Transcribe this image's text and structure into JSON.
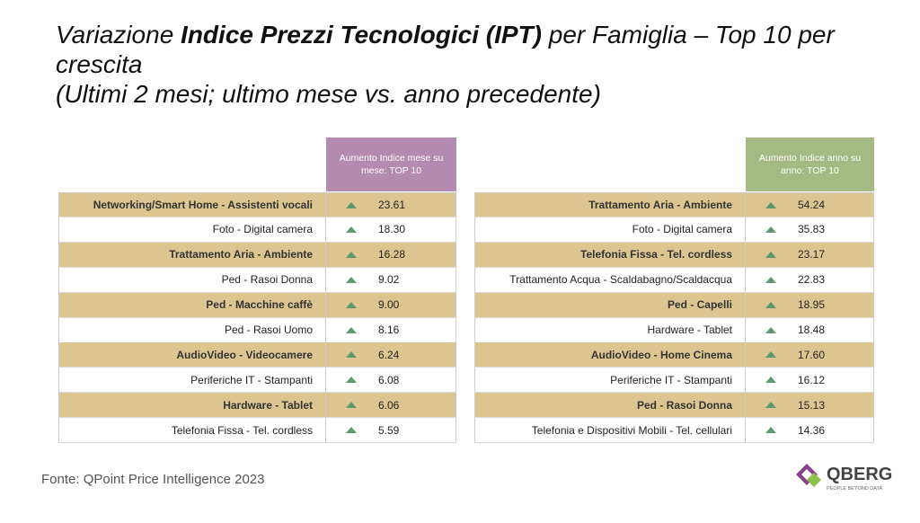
{
  "title": {
    "prefix": "Variazione ",
    "bold": "Indice Prezzi Tecnologici (IPT)",
    "suffix": " per Famiglia – Top 10 per crescita",
    "line2": "(Ultimi 2 mesi; ultimo mese vs. anno precedente)"
  },
  "tables": [
    {
      "header": "Aumento Indice mese su mese: TOP 10",
      "rows": [
        [
          "Networking/Smart Home - Assistenti vocali",
          "23.61"
        ],
        [
          "Foto - Digital camera",
          "18.30"
        ],
        [
          "Trattamento Aria - Ambiente",
          "16.28"
        ],
        [
          "Ped - Rasoi Donna",
          "9.02"
        ],
        [
          "Ped - Macchine caffè",
          "9.00"
        ],
        [
          "Ped - Rasoi Uomo",
          "8.16"
        ],
        [
          "AudioVideo - Videocamere",
          "6.24"
        ],
        [
          "Periferiche IT - Stampanti",
          "6.08"
        ],
        [
          "Hardware - Tablet",
          "6.06"
        ],
        [
          "Telefonia Fissa - Tel. cordless",
          "5.59"
        ]
      ]
    },
    {
      "header": "Aumento Indice anno su anno: TOP 10",
      "rows": [
        [
          "Trattamento Aria - Ambiente",
          "54.24"
        ],
        [
          "Foto - Digital camera",
          "35.83"
        ],
        [
          "Telefonia Fissa - Tel. cordless",
          "23.17"
        ],
        [
          "Trattamento Acqua - Scaldabagno/Scaldacqua",
          "22.83"
        ],
        [
          "Ped - Capelli",
          "18.95"
        ],
        [
          "Hardware - Tablet",
          "18.48"
        ],
        [
          "AudioVideo - Home Cinema",
          "17.60"
        ],
        [
          "Periferiche IT - Stampanti",
          "16.12"
        ],
        [
          "Ped - Rasoi Donna",
          "15.13"
        ],
        [
          "Telefonia e Dispositivi Mobili - Tel. cellulari",
          "14.36"
        ]
      ]
    }
  ],
  "footer": {
    "source": "Fonte: QPoint Price Intelligence 2023",
    "logo": "QBERG",
    "tagline": "PEOPLE BEYOND DATA"
  }
}
